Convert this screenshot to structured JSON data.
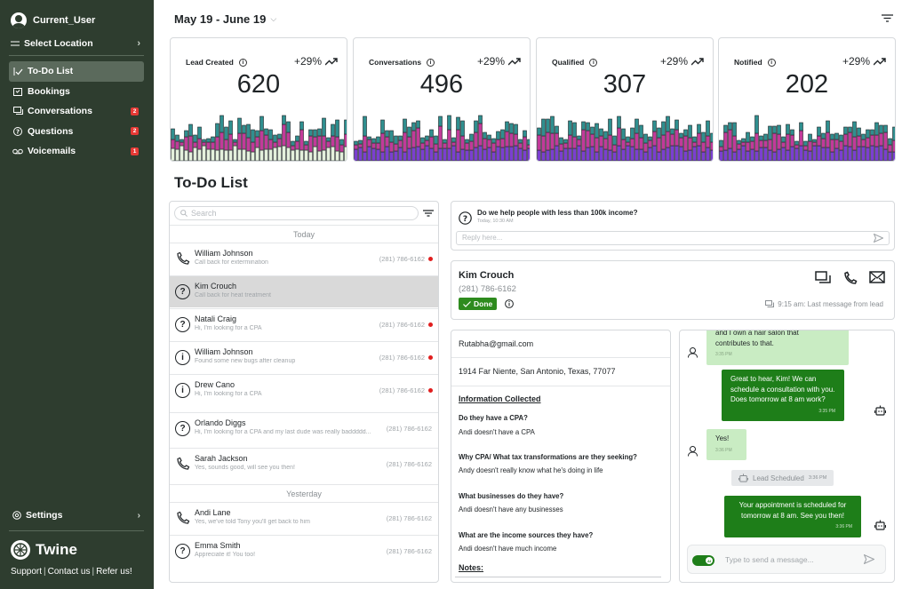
{
  "sidebar": {
    "user": "Current_User",
    "location": "Select Location",
    "nav": [
      {
        "label": "To-Do List",
        "icon": "check-icon",
        "active": true
      },
      {
        "label": "Bookings",
        "icon": "calendar-icon"
      },
      {
        "label": "Conversations",
        "icon": "chat-icon",
        "badge": "2"
      },
      {
        "label": "Questions",
        "icon": "question-icon",
        "badge": "2"
      },
      {
        "label": "Voicemails",
        "icon": "voicemail-icon",
        "badge": "1"
      }
    ],
    "settings": "Settings",
    "brand": "Twine",
    "footer": {
      "support": "Support",
      "contact": "Contact us",
      "refer": "Refer us!"
    }
  },
  "header": {
    "date_range": "May 19 - June 19"
  },
  "stats": [
    {
      "label": "Lead Created",
      "delta": "+29%",
      "value": "620"
    },
    {
      "label": "Conversations",
      "delta": "+29%",
      "value": "496"
    },
    {
      "label": "Qualified",
      "delta": "+29%",
      "value": "307"
    },
    {
      "label": "Notified",
      "delta": "+29%",
      "value": "202"
    }
  ],
  "colors": {
    "sidebar": "#2e3d2f",
    "accent_green": "#1e7e19",
    "done_green": "#2e8b1e",
    "badge_red": "#e53935",
    "bar_teal": "#2f8f8f",
    "bar_magenta": "#c23a9a",
    "bar_purple": "#7b3fd1",
    "bar_light": "#e4f0dc"
  },
  "todo": {
    "title": "To-Do List",
    "search_placeholder": "Search",
    "today": "Today",
    "yesterday": "Yesterday",
    "today_items": [
      {
        "name": "William Johnson",
        "sub": "Call back for extermination",
        "phone": "(281) 786-6162",
        "icon": "phone-icon",
        "dot": true
      },
      {
        "name": "Kim Crouch",
        "sub": "Call back for heat treatment",
        "phone": "",
        "icon": "question-icon",
        "dot": false,
        "selected": true
      },
      {
        "name": "Natali Craig",
        "sub": "Hi, I'm looking for a CPA",
        "phone": "(281) 786-6162",
        "icon": "question-icon",
        "dot": true
      },
      {
        "name": "William Johnson",
        "sub": "Found some new bugs after cleanup",
        "phone": "(281) 786-6162",
        "icon": "info-icon",
        "dot": true
      },
      {
        "name": "Drew Cano",
        "sub": "Hi, I'm looking for a CPA",
        "phone": "(281) 786-6162",
        "icon": "info-icon",
        "dot": true
      },
      {
        "name": "Orlando Diggs",
        "sub": "Hi, I'm looking for a CPA and my last dude was really baddddd...",
        "phone": "(281) 786-6162",
        "icon": "question-icon",
        "dot": false
      },
      {
        "name": "Sarah Jackson",
        "sub": "Yes, sounds good, will see you then!",
        "phone": "(281) 786-6162",
        "icon": "phone-icon",
        "dot": false
      }
    ],
    "yesterday_items": [
      {
        "name": "Andi Lane",
        "sub": "Yes, we've told Tony you'll get back to him",
        "phone": "(281) 786-6162",
        "icon": "phone-icon",
        "dot": false
      },
      {
        "name": "Emma Smith",
        "sub": "Appreciate it! You too!",
        "phone": "(281) 786-6162",
        "icon": "question-icon",
        "dot": false
      }
    ]
  },
  "question": {
    "text": "Do we help people with less than 100k income?",
    "time": "Today, 10:30 AM",
    "reply_placeholder": "Reply here..."
  },
  "contact": {
    "name": "Kim Crouch",
    "phone": "(281) 786-6162",
    "done_label": "Done",
    "last_message": "9:15 am: Last message from lead"
  },
  "info": {
    "email": "Rutabha@gmail.com",
    "address": "1914 Far Niente, San Antonio, Texas, 77077",
    "collected_heading": "Information Collected",
    "qa": [
      {
        "q": "Do they have a CPA?",
        "a": "Andi doesn't have a CPA"
      },
      {
        "q": "Why CPA/ What tax transformations are they seeking?",
        "a": "Andy doesn't really know what he's doing in life"
      },
      {
        "q": "What businesses do they have?",
        "a": "Andi doesn't have any businesses"
      },
      {
        "q": "What are the income sources they have?",
        "a": "Andi doesn't have much income"
      }
    ],
    "notes_heading": "Notes:"
  },
  "chat": {
    "messages": [
      {
        "from": "lead",
        "text_top": "and I own a hair salon that",
        "text": "contributes to that.",
        "time": "3:35 PM"
      },
      {
        "from": "bot",
        "text": "Great to hear, Kim! We can schedule a consultation with you. Does tomorrow at 8 am work?",
        "time": "3:35 PM"
      },
      {
        "from": "lead",
        "text": "Yes!",
        "time": "3:36 PM"
      },
      {
        "from": "bot",
        "text": "Your appointment is scheduled for tomorrow at 8 am. See you then!",
        "time": "3:36 PM"
      }
    ],
    "event": {
      "label": "Lead Scheduled",
      "time": "3:36 PM"
    },
    "ai_label": "AI",
    "composer_placeholder": "Type to send a message..."
  }
}
